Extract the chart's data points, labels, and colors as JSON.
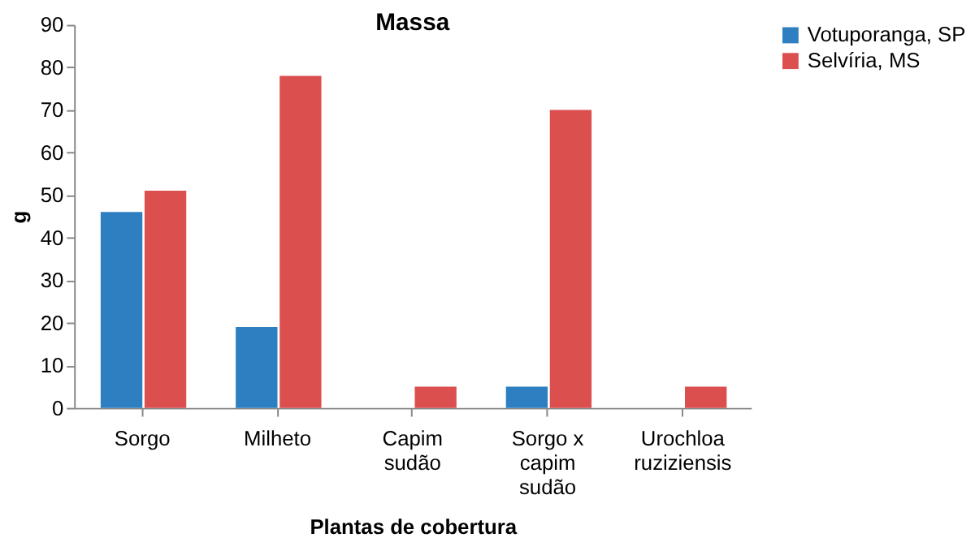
{
  "chart_data": {
    "type": "bar",
    "title": "Massa",
    "xlabel": "Plantas de cobertura",
    "ylabel": "g",
    "categories": [
      "Sorgo",
      "Milheto",
      "Capim\nsudão",
      "Sorgo x\ncapim\nsudão",
      "Urochloa\nruziziensis"
    ],
    "series": [
      {
        "name": "Votuporanga, SP",
        "color": "#2e7fc1",
        "values": [
          46,
          19,
          null,
          5,
          null
        ]
      },
      {
        "name": "Selvíria, MS",
        "color": "#dc4f4f",
        "values": [
          51,
          78,
          5,
          70,
          5
        ]
      }
    ],
    "ylim": [
      0,
      90
    ],
    "yticks": [
      0,
      10,
      20,
      30,
      40,
      50,
      60,
      70,
      80,
      90
    ],
    "grid": false,
    "legend": "right"
  }
}
